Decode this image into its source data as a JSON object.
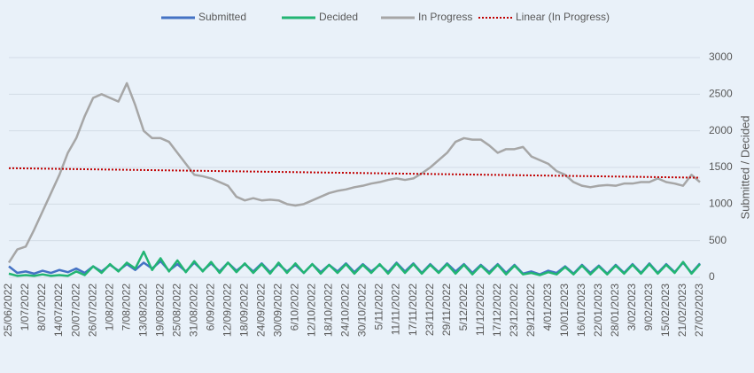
{
  "chart_data": {
    "type": "line",
    "categories": [
      "25/06/2022",
      null,
      "1/07/2022",
      null,
      "8/07/2022",
      null,
      "14/07/2022",
      null,
      "20/07/2022",
      null,
      "26/07/2022",
      null,
      "1/08/2022",
      null,
      "7/08/2022",
      null,
      "13/08/2022",
      null,
      "19/08/2022",
      null,
      "25/08/2022",
      null,
      "31/08/2022",
      null,
      "6/09/2022",
      null,
      "12/09/2022",
      null,
      "18/09/2022",
      null,
      "24/09/2022",
      null,
      "30/09/2022",
      null,
      "6/10/2022",
      null,
      "12/10/2022",
      null,
      "18/10/2022",
      null,
      "24/10/2022",
      null,
      "30/10/2022",
      null,
      "5/11/2022",
      null,
      "11/11/2022",
      null,
      "17/11/2022",
      null,
      "23/11/2022",
      null,
      "29/11/2022",
      null,
      "5/12/2022",
      null,
      "11/12/2022",
      null,
      "17/12/2022",
      null,
      "23/12/2022",
      null,
      "29/12/2022",
      null,
      "4/01/2023",
      null,
      "10/01/2023",
      null,
      "16/01/2023",
      null,
      "22/01/2023",
      null,
      "28/01/2023",
      null,
      "3/02/2023",
      null,
      "9/02/2023",
      null,
      "15/02/2023",
      null,
      "21/02/2023",
      null,
      "27/02/2023"
    ],
    "series": [
      {
        "name": "Submitted",
        "color": "#4472c4",
        "values": [
          150,
          60,
          80,
          50,
          90,
          60,
          100,
          70,
          120,
          60,
          150,
          80,
          170,
          90,
          180,
          100,
          200,
          120,
          220,
          90,
          180,
          80,
          200,
          90,
          190,
          80,
          200,
          90,
          180,
          80,
          190,
          70,
          180,
          80,
          170,
          60,
          180,
          70,
          170,
          80,
          190,
          70,
          180,
          80,
          170,
          70,
          200,
          80,
          190,
          60,
          180,
          70,
          190,
          80,
          180,
          60,
          170,
          70,
          180,
          60,
          170,
          50,
          80,
          40,
          90,
          60,
          150,
          50,
          170,
          60,
          160,
          50,
          170,
          60,
          180,
          60,
          190,
          60,
          180,
          70,
          200,
          60,
          190
        ]
      },
      {
        "name": "Decided",
        "color": "#22b573",
        "values": [
          50,
          20,
          30,
          20,
          40,
          20,
          30,
          20,
          80,
          30,
          150,
          60,
          180,
          80,
          200,
          120,
          350,
          100,
          260,
          80,
          230,
          70,
          220,
          80,
          210,
          60,
          200,
          70,
          190,
          60,
          180,
          50,
          200,
          60,
          190,
          60,
          180,
          50,
          170,
          60,
          180,
          50,
          170,
          60,
          180,
          50,
          190,
          60,
          180,
          50,
          170,
          60,
          180,
          50,
          170,
          40,
          160,
          50,
          170,
          40,
          160,
          40,
          60,
          30,
          70,
          40,
          140,
          40,
          160,
          40,
          150,
          40,
          160,
          50,
          170,
          50,
          180,
          50,
          170,
          60,
          210,
          50,
          180
        ]
      },
      {
        "name": "In Progress",
        "color": "#a6a6a6",
        "values": [
          200,
          380,
          420,
          650,
          900,
          1150,
          1400,
          1700,
          1900,
          2200,
          2450,
          2500,
          2450,
          2400,
          2650,
          2350,
          2000,
          1900,
          1900,
          1850,
          1700,
          1550,
          1400,
          1380,
          1350,
          1300,
          1250,
          1100,
          1050,
          1080,
          1050,
          1060,
          1050,
          1000,
          980,
          1000,
          1050,
          1100,
          1150,
          1180,
          1200,
          1230,
          1250,
          1280,
          1300,
          1330,
          1350,
          1330,
          1350,
          1420,
          1500,
          1600,
          1700,
          1850,
          1900,
          1880,
          1880,
          1800,
          1700,
          1750,
          1750,
          1780,
          1650,
          1600,
          1550,
          1450,
          1400,
          1300,
          1250,
          1230,
          1250,
          1260,
          1250,
          1280,
          1280,
          1300,
          1300,
          1350,
          1300,
          1280,
          1250,
          1400,
          1300
        ]
      }
    ],
    "trend": {
      "name": "Linear (In Progress)",
      "color": "#c00000",
      "start": 1490,
      "end": 1360
    },
    "y_axis_label": "Submitted / Decided",
    "ylim": [
      0,
      3000
    ],
    "yticks": [
      0,
      500,
      1000,
      1500,
      2000,
      2500,
      3000
    ],
    "grid": true
  }
}
